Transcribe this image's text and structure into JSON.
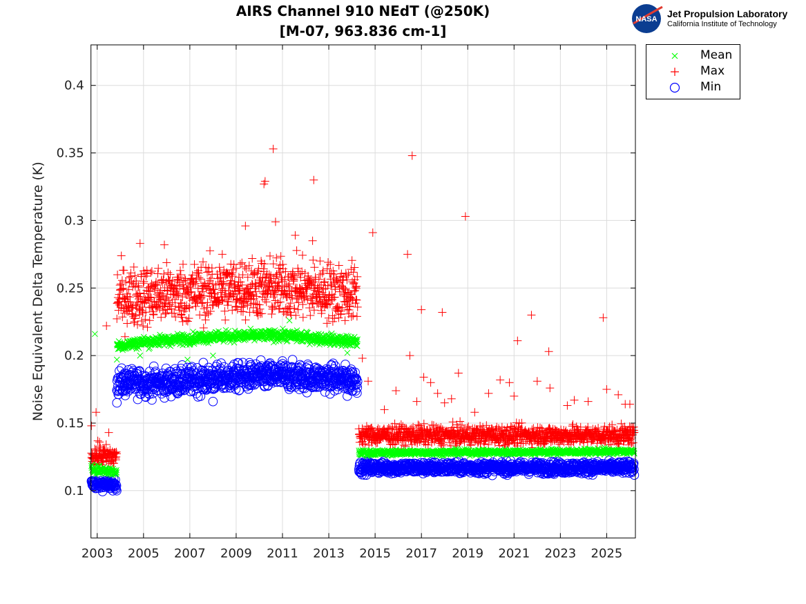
{
  "chart_data": {
    "type": "scatter",
    "title": [
      "AIRS Channel 910 NEdT (@250K)",
      "[M-07, 963.836 cm-1]"
    ],
    "xlabel": "",
    "ylabel": "Noise Equivalent Delta Temperature (K)",
    "xlim": [
      2002.73,
      2026.24
    ],
    "ylim": [
      0.065,
      0.43
    ],
    "xticks": [
      2003,
      2005,
      2007,
      2009,
      2011,
      2013,
      2015,
      2017,
      2019,
      2021,
      2023,
      2025
    ],
    "xtick_labels": [
      "2003",
      "2005",
      "2007",
      "2009",
      "2011",
      "2013",
      "2015",
      "2017",
      "2019",
      "2021",
      "2023",
      "2025"
    ],
    "yticks": [
      0.1,
      0.15,
      0.2,
      0.25,
      0.3,
      0.35,
      0.4
    ],
    "ytick_labels": [
      "0.1",
      "0.15",
      "0.2",
      "0.25",
      "0.3",
      "0.35",
      "0.4"
    ],
    "grid": true,
    "legend_position": "outside-top-right",
    "series": [
      {
        "name": "Mean",
        "marker": "x",
        "color": "#00ff00",
        "segments": [
          {
            "x_range": [
              2002.75,
              2003.85
            ],
            "level": [
              [
                2002.75,
                0.116
              ],
              [
                2003.85,
                0.114
              ]
            ],
            "spread": 0.0015
          },
          {
            "x_range": [
              2003.85,
              2014.25
            ],
            "level": [
              [
                2003.85,
                0.207
              ],
              [
                2005,
                0.21
              ],
              [
                2008,
                0.214
              ],
              [
                2011,
                0.215
              ],
              [
                2014.25,
                0.21
              ]
            ],
            "spread": 0.002
          },
          {
            "x_range": [
              2014.3,
              2026.2
            ],
            "level": [
              [
                2014.3,
                0.128
              ],
              [
                2026.2,
                0.129
              ]
            ],
            "spread": 0.001
          }
        ],
        "outliers": [
          [
            2002.9,
            0.216
          ],
          [
            2003.85,
            0.197
          ],
          [
            2004.85,
            0.2
          ],
          [
            2006.9,
            0.197
          ],
          [
            2008.0,
            0.2
          ],
          [
            2011.3,
            0.226
          ],
          [
            2013.8,
            0.202
          ],
          [
            2024.9,
            0.132
          ]
        ]
      },
      {
        "name": "Max",
        "marker": "+",
        "color": "#ff0000",
        "segments": [
          {
            "x_range": [
              2002.75,
              2003.85
            ],
            "level": [
              [
                2002.75,
                0.126
              ],
              [
                2003.85,
                0.125
              ]
            ],
            "spread": 0.004
          },
          {
            "x_range": [
              2003.85,
              2014.25
            ],
            "level": [
              [
                2003.85,
                0.243
              ],
              [
                2006,
                0.245
              ],
              [
                2009,
                0.25
              ],
              [
                2011,
                0.25
              ],
              [
                2014.25,
                0.246
              ]
            ],
            "spread": 0.011
          },
          {
            "x_range": [
              2014.3,
              2026.2
            ],
            "level": [
              [
                2014.3,
                0.141
              ],
              [
                2026.2,
                0.141
              ]
            ],
            "spread": 0.0035
          }
        ],
        "outliers": [
          [
            2002.75,
            0.148
          ],
          [
            2002.95,
            0.158
          ],
          [
            2003.1,
            0.136
          ],
          [
            2003.5,
            0.143
          ],
          [
            2003.4,
            0.222
          ],
          [
            2004.85,
            0.283
          ],
          [
            2005.9,
            0.282
          ],
          [
            2008.4,
            0.275
          ],
          [
            2009.4,
            0.296
          ],
          [
            2010.2,
            0.327
          ],
          [
            2010.25,
            0.329
          ],
          [
            2010.6,
            0.353
          ],
          [
            2010.7,
            0.299
          ],
          [
            2011.55,
            0.289
          ],
          [
            2012.3,
            0.285
          ],
          [
            2012.35,
            0.33
          ],
          [
            2014.45,
            0.198
          ],
          [
            2014.7,
            0.181
          ],
          [
            2014.9,
            0.291
          ],
          [
            2015.4,
            0.16
          ],
          [
            2015.9,
            0.174
          ],
          [
            2016.4,
            0.275
          ],
          [
            2016.5,
            0.2
          ],
          [
            2016.6,
            0.348
          ],
          [
            2016.8,
            0.166
          ],
          [
            2017.0,
            0.234
          ],
          [
            2017.1,
            0.184
          ],
          [
            2017.4,
            0.18
          ],
          [
            2017.7,
            0.172
          ],
          [
            2017.9,
            0.232
          ],
          [
            2018.0,
            0.165
          ],
          [
            2018.3,
            0.168
          ],
          [
            2018.6,
            0.187
          ],
          [
            2018.9,
            0.303
          ],
          [
            2019.3,
            0.158
          ],
          [
            2019.9,
            0.172
          ],
          [
            2020.4,
            0.182
          ],
          [
            2020.8,
            0.18
          ],
          [
            2021.0,
            0.17
          ],
          [
            2021.15,
            0.211
          ],
          [
            2021.75,
            0.23
          ],
          [
            2022.0,
            0.181
          ],
          [
            2022.5,
            0.203
          ],
          [
            2022.55,
            0.176
          ],
          [
            2023.3,
            0.163
          ],
          [
            2023.6,
            0.167
          ],
          [
            2024.2,
            0.166
          ],
          [
            2024.85,
            0.228
          ],
          [
            2025.0,
            0.175
          ],
          [
            2025.5,
            0.171
          ],
          [
            2025.8,
            0.164
          ],
          [
            2026.0,
            0.164
          ]
        ]
      },
      {
        "name": "Min",
        "marker": "o",
        "color": "#0000ff",
        "segments": [
          {
            "x_range": [
              2002.75,
              2003.85
            ],
            "level": [
              [
                2002.75,
                0.105
              ],
              [
                2003.85,
                0.104
              ]
            ],
            "spread": 0.002
          },
          {
            "x_range": [
              2003.85,
              2014.25
            ],
            "level": [
              [
                2003.85,
                0.18
              ],
              [
                2006,
                0.18
              ],
              [
                2009,
                0.184
              ],
              [
                2011,
                0.185
              ],
              [
                2014.25,
                0.182
              ]
            ],
            "spread": 0.005
          },
          {
            "x_range": [
              2014.3,
              2026.2
            ],
            "level": [
              [
                2014.3,
                0.117
              ],
              [
                2026.2,
                0.117
              ]
            ],
            "spread": 0.0022
          }
        ],
        "outliers": [
          [
            2003.85,
            0.165
          ],
          [
            2008.0,
            0.166
          ],
          [
            2013.8,
            0.17
          ],
          [
            2011.0,
            0.196
          ]
        ]
      }
    ]
  },
  "logo": {
    "line1": "Jet Propulsion Laboratory",
    "line2": "California Institute of Technology",
    "badge": "NASA"
  }
}
